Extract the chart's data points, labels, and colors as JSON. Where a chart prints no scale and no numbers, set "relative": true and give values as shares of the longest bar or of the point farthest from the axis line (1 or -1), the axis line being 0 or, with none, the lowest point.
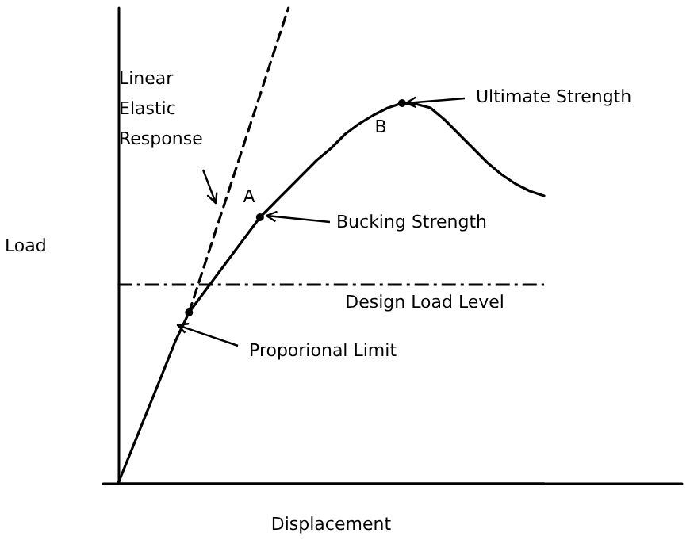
{
  "chart_data": {
    "type": "line",
    "relative": true,
    "xlabel": "Displacement",
    "ylabel": "Load",
    "grid": false,
    "categories": [
      null,
      null,
      null,
      null,
      null,
      null,
      null,
      null,
      null,
      null,
      null,
      null,
      null,
      null,
      null,
      null,
      null,
      null,
      null,
      null,
      null,
      null,
      null,
      null,
      null,
      null,
      null,
      null,
      null,
      null,
      null
    ],
    "series": [
      {
        "color": "#000000",
        "line_style": "solid",
        "marker": "none",
        "values": [
          0,
          0.074,
          0.148,
          0.222,
          0.297,
          0.36,
          0.4,
          0.44,
          0.48,
          0.52,
          0.56,
          0.59,
          0.62,
          0.65,
          0.68,
          0.705,
          0.735,
          0.757,
          0.775,
          0.79,
          0.8,
          0.798,
          0.79,
          0.765,
          0.735,
          0.705,
          0.675,
          0.65,
          0.63,
          0.615,
          0.605
        ]
      },
      {
        "color": "#000000",
        "line_style": "dashed",
        "marker": "none",
        "values": [
          null,
          null,
          null,
          null,
          null,
          0.36,
          0.451,
          0.543,
          0.634,
          0.726,
          0.817,
          0.909,
          1,
          null,
          null,
          null,
          null,
          null,
          null,
          null,
          null,
          null,
          null,
          null,
          null,
          null,
          null,
          null,
          null,
          null,
          null
        ]
      },
      {
        "color": "#000000",
        "line_style": "solid",
        "marker": "circle",
        "values": [
          null,
          null,
          null,
          null,
          null,
          0.36,
          null,
          null,
          null,
          null,
          0.56,
          null,
          null,
          null,
          null,
          null,
          null,
          null,
          null,
          null,
          0.8,
          null,
          null,
          null,
          null,
          null,
          null,
          null,
          null,
          null,
          null
        ]
      }
    ],
    "ref_lines": [
      {
        "axis": "y",
        "value": 0.423,
        "label": "Design Load Level",
        "color": "#000000",
        "line_style": "dashed"
      }
    ],
    "annotations": [
      "Linear Elastic Response",
      "A",
      "Bucking Strength",
      "B",
      "Ultimate Strength",
      "Proporional Limit"
    ]
  }
}
